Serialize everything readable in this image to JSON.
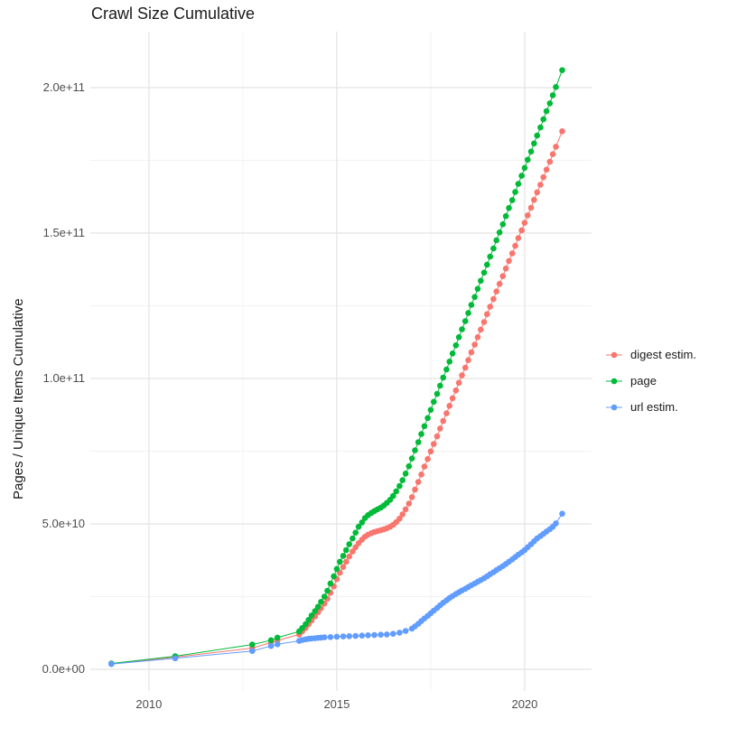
{
  "title": "Crawl Size Cumulative",
  "y_axis_title": "Pages / Unique Items Cumulative",
  "legend": {
    "items": [
      {
        "label": "digest estim.",
        "color": "#F8766D"
      },
      {
        "label": "page",
        "color": "#00BA38"
      },
      {
        "label": "url estim.",
        "color": "#619CFF"
      }
    ]
  },
  "chart_data": {
    "type": "scatter",
    "title": "Crawl Size Cumulative",
    "xlabel": "",
    "ylabel": "Pages / Unique Items Cumulative",
    "x_unit": "year",
    "y_values_unit": "items, stored as multiples of 1e9",
    "grid": true,
    "legend_position": "right",
    "xlim": [
      2008.44,
      2021.78
    ],
    "ylim_e9": [
      -7.45,
      219.25
    ],
    "x_major_ticks": [
      {
        "v": 2010,
        "label": "2010"
      },
      {
        "v": 2015,
        "label": "2015"
      },
      {
        "v": 2020,
        "label": "2020"
      }
    ],
    "x_minor_ticks": [
      2012.5,
      2017.5
    ],
    "y_major_ticks": [
      {
        "v": 0,
        "label": "0.0e+00"
      },
      {
        "v": 50,
        "label": "5.0e+10"
      },
      {
        "v": 100,
        "label": "1.0e+11"
      },
      {
        "v": 150,
        "label": "1.5e+11"
      },
      {
        "v": 200,
        "label": "2.0e+11"
      }
    ],
    "y_minor_ticks": [
      25,
      75,
      125,
      175
    ],
    "series": [
      {
        "id": "digest",
        "name": "digest estim.",
        "color": "#F8766D",
        "points": [
          [
            2009.0,
            1.9
          ],
          [
            2010.7,
            4.2
          ],
          [
            2012.75,
            7.3
          ],
          [
            2013.25,
            9.2
          ],
          [
            2013.42,
            9.9
          ],
          [
            2014.0,
            12.0
          ],
          [
            2014.08,
            13.0
          ],
          [
            2014.17,
            14.2
          ],
          [
            2014.25,
            15.5
          ],
          [
            2014.33,
            16.8
          ],
          [
            2014.42,
            18.2
          ],
          [
            2014.5,
            19.6
          ],
          [
            2014.58,
            21.0
          ],
          [
            2014.67,
            22.6
          ],
          [
            2014.75,
            24.3
          ],
          [
            2014.83,
            26.3
          ],
          [
            2014.92,
            28.5
          ],
          [
            2015.0,
            31.0
          ],
          [
            2015.08,
            33.2
          ],
          [
            2015.17,
            35.2
          ],
          [
            2015.25,
            37.0
          ],
          [
            2015.33,
            38.8
          ],
          [
            2015.42,
            40.5
          ],
          [
            2015.5,
            42.0
          ],
          [
            2015.58,
            43.4
          ],
          [
            2015.67,
            44.6
          ],
          [
            2015.75,
            45.6
          ],
          [
            2015.83,
            46.3
          ],
          [
            2015.92,
            46.8
          ],
          [
            2016.0,
            47.2
          ],
          [
            2016.08,
            47.5
          ],
          [
            2016.17,
            47.8
          ],
          [
            2016.25,
            48.1
          ],
          [
            2016.33,
            48.5
          ],
          [
            2016.42,
            49.0
          ],
          [
            2016.5,
            49.7
          ],
          [
            2016.58,
            50.6
          ],
          [
            2016.67,
            51.8
          ],
          [
            2016.75,
            53.3
          ],
          [
            2016.83,
            55.0
          ],
          [
            2016.92,
            57.0
          ],
          [
            2017.0,
            59.2
          ],
          [
            2017.08,
            61.8
          ],
          [
            2017.17,
            64.4
          ],
          [
            2017.25,
            67.0
          ],
          [
            2017.33,
            69.7
          ],
          [
            2017.42,
            72.3
          ],
          [
            2017.5,
            74.9
          ],
          [
            2017.58,
            77.5
          ],
          [
            2017.67,
            80.1
          ],
          [
            2017.75,
            82.8
          ],
          [
            2017.83,
            85.4
          ],
          [
            2017.92,
            88.0
          ],
          [
            2018.0,
            90.6
          ],
          [
            2018.08,
            93.2
          ],
          [
            2018.17,
            95.9
          ],
          [
            2018.25,
            98.5
          ],
          [
            2018.33,
            101.1
          ],
          [
            2018.42,
            103.7
          ],
          [
            2018.5,
            106.3
          ],
          [
            2018.58,
            109.0
          ],
          [
            2018.67,
            111.6
          ],
          [
            2018.75,
            114.2
          ],
          [
            2018.83,
            116.8
          ],
          [
            2018.92,
            119.4
          ],
          [
            2019.0,
            122.1
          ],
          [
            2019.08,
            124.7
          ],
          [
            2019.17,
            127.3
          ],
          [
            2019.25,
            129.9
          ],
          [
            2019.33,
            132.5
          ],
          [
            2019.42,
            135.2
          ],
          [
            2019.5,
            137.8
          ],
          [
            2019.58,
            140.4
          ],
          [
            2019.67,
            143.0
          ],
          [
            2019.75,
            145.6
          ],
          [
            2019.83,
            148.3
          ],
          [
            2019.92,
            150.9
          ],
          [
            2020.0,
            153.5
          ],
          [
            2020.08,
            156.1
          ],
          [
            2020.17,
            158.7
          ],
          [
            2020.25,
            161.4
          ],
          [
            2020.33,
            164.0
          ],
          [
            2020.42,
            166.6
          ],
          [
            2020.5,
            169.2
          ],
          [
            2020.58,
            171.8
          ],
          [
            2020.67,
            174.5
          ],
          [
            2020.75,
            177.1
          ],
          [
            2020.83,
            179.7
          ],
          [
            2021.0,
            185.0
          ]
        ]
      },
      {
        "id": "page",
        "name": "page",
        "color": "#00BA38",
        "points": [
          [
            2009.0,
            2.0
          ],
          [
            2010.7,
            4.5
          ],
          [
            2012.75,
            8.5
          ],
          [
            2013.25,
            10.0
          ],
          [
            2013.42,
            10.9
          ],
          [
            2014.0,
            13.0
          ],
          [
            2014.08,
            14.2
          ],
          [
            2014.17,
            15.5
          ],
          [
            2014.25,
            17.0
          ],
          [
            2014.33,
            18.5
          ],
          [
            2014.42,
            20.0
          ],
          [
            2014.5,
            21.5
          ],
          [
            2014.58,
            23.2
          ],
          [
            2014.67,
            25.0
          ],
          [
            2014.75,
            27.0
          ],
          [
            2014.83,
            29.5
          ],
          [
            2014.92,
            32.0
          ],
          [
            2015.0,
            34.5
          ],
          [
            2015.08,
            37.0
          ],
          [
            2015.17,
            39.0
          ],
          [
            2015.25,
            41.0
          ],
          [
            2015.33,
            43.0
          ],
          [
            2015.42,
            45.0
          ],
          [
            2015.5,
            47.0
          ],
          [
            2015.58,
            49.0
          ],
          [
            2015.67,
            50.5
          ],
          [
            2015.75,
            52.0
          ],
          [
            2015.83,
            53.0
          ],
          [
            2015.92,
            53.8
          ],
          [
            2016.0,
            54.4
          ],
          [
            2016.08,
            55.0
          ],
          [
            2016.17,
            55.6
          ],
          [
            2016.25,
            56.3
          ],
          [
            2016.33,
            57.2
          ],
          [
            2016.42,
            58.3
          ],
          [
            2016.5,
            59.6
          ],
          [
            2016.58,
            61.2
          ],
          [
            2016.67,
            63.0
          ],
          [
            2016.75,
            65.0
          ],
          [
            2016.83,
            67.3
          ],
          [
            2016.92,
            69.8
          ],
          [
            2017.0,
            72.5
          ],
          [
            2017.08,
            75.3
          ],
          [
            2017.17,
            78.1
          ],
          [
            2017.25,
            80.9
          ],
          [
            2017.33,
            83.6
          ],
          [
            2017.42,
            86.4
          ],
          [
            2017.5,
            89.2
          ],
          [
            2017.58,
            92.0
          ],
          [
            2017.67,
            94.7
          ],
          [
            2017.75,
            97.5
          ],
          [
            2017.83,
            100.3
          ],
          [
            2017.92,
            103.1
          ],
          [
            2018.0,
            105.8
          ],
          [
            2018.08,
            108.6
          ],
          [
            2018.17,
            111.4
          ],
          [
            2018.25,
            114.2
          ],
          [
            2018.33,
            116.9
          ],
          [
            2018.42,
            119.7
          ],
          [
            2018.5,
            122.5
          ],
          [
            2018.58,
            125.3
          ],
          [
            2018.67,
            128.0
          ],
          [
            2018.75,
            130.8
          ],
          [
            2018.83,
            133.6
          ],
          [
            2018.92,
            136.4
          ],
          [
            2019.0,
            139.1
          ],
          [
            2019.08,
            141.9
          ],
          [
            2019.17,
            144.7
          ],
          [
            2019.25,
            147.5
          ],
          [
            2019.33,
            150.2
          ],
          [
            2019.42,
            153.0
          ],
          [
            2019.5,
            155.8
          ],
          [
            2019.58,
            158.6
          ],
          [
            2019.67,
            161.3
          ],
          [
            2019.75,
            164.1
          ],
          [
            2019.83,
            166.9
          ],
          [
            2019.92,
            169.7
          ],
          [
            2020.0,
            172.4
          ],
          [
            2020.08,
            175.2
          ],
          [
            2020.17,
            178.0
          ],
          [
            2020.25,
            180.8
          ],
          [
            2020.33,
            183.5
          ],
          [
            2020.42,
            186.3
          ],
          [
            2020.5,
            189.1
          ],
          [
            2020.58,
            191.9
          ],
          [
            2020.67,
            194.6
          ],
          [
            2020.75,
            197.4
          ],
          [
            2020.83,
            200.2
          ],
          [
            2021.0,
            206.0
          ]
        ]
      },
      {
        "id": "url",
        "name": "url estim.",
        "color": "#619CFF",
        "points": [
          [
            2009.0,
            1.8
          ],
          [
            2010.7,
            3.8
          ],
          [
            2012.75,
            6.3
          ],
          [
            2013.25,
            8.0
          ],
          [
            2013.42,
            8.6
          ],
          [
            2014.0,
            9.8
          ],
          [
            2014.08,
            10.1
          ],
          [
            2014.17,
            10.3
          ],
          [
            2014.25,
            10.5
          ],
          [
            2014.33,
            10.6
          ],
          [
            2014.42,
            10.7
          ],
          [
            2014.5,
            10.8
          ],
          [
            2014.58,
            10.9
          ],
          [
            2014.67,
            11.0
          ],
          [
            2014.83,
            11.1
          ],
          [
            2015.0,
            11.2
          ],
          [
            2015.17,
            11.3
          ],
          [
            2015.33,
            11.4
          ],
          [
            2015.5,
            11.5
          ],
          [
            2015.67,
            11.6
          ],
          [
            2015.83,
            11.7
          ],
          [
            2016.0,
            11.8
          ],
          [
            2016.17,
            11.9
          ],
          [
            2016.33,
            12.0
          ],
          [
            2016.5,
            12.2
          ],
          [
            2016.67,
            12.6
          ],
          [
            2016.83,
            13.2
          ],
          [
            2017.0,
            14.0
          ],
          [
            2017.08,
            14.8
          ],
          [
            2017.17,
            15.7
          ],
          [
            2017.25,
            16.6
          ],
          [
            2017.33,
            17.5
          ],
          [
            2017.42,
            18.4
          ],
          [
            2017.5,
            19.3
          ],
          [
            2017.58,
            20.2
          ],
          [
            2017.67,
            21.1
          ],
          [
            2017.75,
            22.0
          ],
          [
            2017.83,
            22.9
          ],
          [
            2017.92,
            23.7
          ],
          [
            2018.0,
            24.5
          ],
          [
            2018.08,
            25.2
          ],
          [
            2018.17,
            25.9
          ],
          [
            2018.25,
            26.5
          ],
          [
            2018.33,
            27.1
          ],
          [
            2018.42,
            27.7
          ],
          [
            2018.5,
            28.3
          ],
          [
            2018.58,
            28.9
          ],
          [
            2018.67,
            29.5
          ],
          [
            2018.75,
            30.1
          ],
          [
            2018.83,
            30.7
          ],
          [
            2018.92,
            31.3
          ],
          [
            2019.0,
            32.0
          ],
          [
            2019.08,
            32.7
          ],
          [
            2019.17,
            33.4
          ],
          [
            2019.25,
            34.1
          ],
          [
            2019.33,
            34.8
          ],
          [
            2019.42,
            35.5
          ],
          [
            2019.5,
            36.2
          ],
          [
            2019.58,
            37.0
          ],
          [
            2019.67,
            37.8
          ],
          [
            2019.75,
            38.6
          ],
          [
            2019.83,
            39.4
          ],
          [
            2019.92,
            40.2
          ],
          [
            2020.0,
            41.0
          ],
          [
            2020.08,
            42.0
          ],
          [
            2020.17,
            43.0
          ],
          [
            2020.25,
            44.0
          ],
          [
            2020.33,
            45.0
          ],
          [
            2020.42,
            45.8
          ],
          [
            2020.5,
            46.6
          ],
          [
            2020.58,
            47.4
          ],
          [
            2020.67,
            48.2
          ],
          [
            2020.75,
            49.0
          ],
          [
            2020.83,
            50.2
          ],
          [
            2021.0,
            53.5
          ]
        ]
      }
    ]
  }
}
